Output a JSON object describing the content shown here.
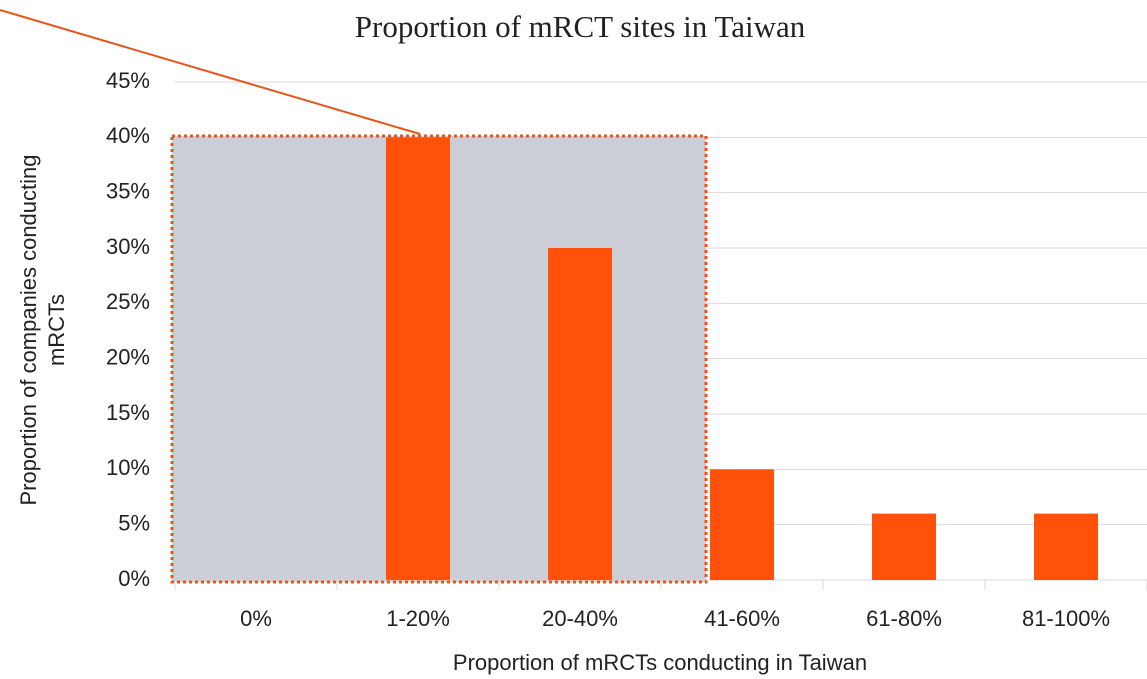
{
  "chart_data": {
    "type": "bar",
    "title": "Proportion of mRCT sites in Taiwan",
    "xlabel": "Proportion of mRCTs conducting in Taiwan",
    "ylabel": [
      "Proportion of companies conducting",
      "mRCTs"
    ],
    "categories": [
      "0%",
      "1-20%",
      "20-40%",
      "41-60%",
      "61-80%",
      "81-100%"
    ],
    "values": [
      0,
      40,
      30,
      10,
      6,
      6
    ],
    "color": "#ff5208",
    "ylim": [
      0,
      45
    ],
    "yticks": [
      {
        "value": 0,
        "label": "0%"
      },
      {
        "value": 5,
        "label": "5%"
      },
      {
        "value": 10,
        "label": "10%"
      },
      {
        "value": 15,
        "label": "15%"
      },
      {
        "value": 20,
        "label": "20%"
      },
      {
        "value": 25,
        "label": "25%"
      },
      {
        "value": 30,
        "label": "30%"
      },
      {
        "value": 35,
        "label": "35%"
      },
      {
        "value": 40,
        "label": "40%"
      },
      {
        "value": 45,
        "label": "45%"
      }
    ],
    "grid": true
  }
}
